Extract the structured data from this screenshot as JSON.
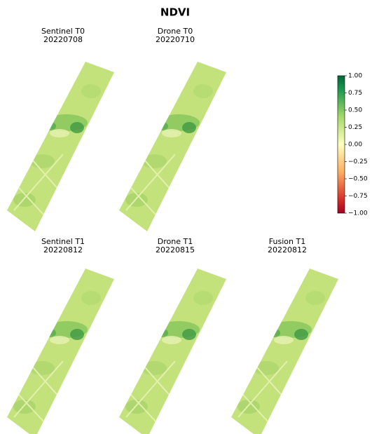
{
  "title": "NDVI",
  "panels": [
    {
      "title": "Sentinel T0",
      "date": "20220708"
    },
    {
      "title": "Drone T0",
      "date": "20220710"
    },
    {
      "title": "Sentinel T1",
      "date": "20220812"
    },
    {
      "title": "Drone T1",
      "date": "20220815"
    },
    {
      "title": "Fusion T1",
      "date": "20220812"
    }
  ],
  "colorbar": {
    "colormap": "RdYlGn",
    "ylim": [
      -1,
      1
    ],
    "yticks": [
      {
        "value": 1,
        "label": "1.00"
      },
      {
        "value": 0.75,
        "label": "0.75"
      },
      {
        "value": 0.5,
        "label": "0.50"
      },
      {
        "value": 0.25,
        "label": "0.25"
      },
      {
        "value": 0,
        "label": "0.00"
      },
      {
        "value": -0.25,
        "label": "−0.25"
      },
      {
        "value": -0.5,
        "label": "−0.50"
      },
      {
        "value": -0.75,
        "label": "−0.75"
      },
      {
        "value": -1,
        "label": "−1.00"
      }
    ]
  }
}
